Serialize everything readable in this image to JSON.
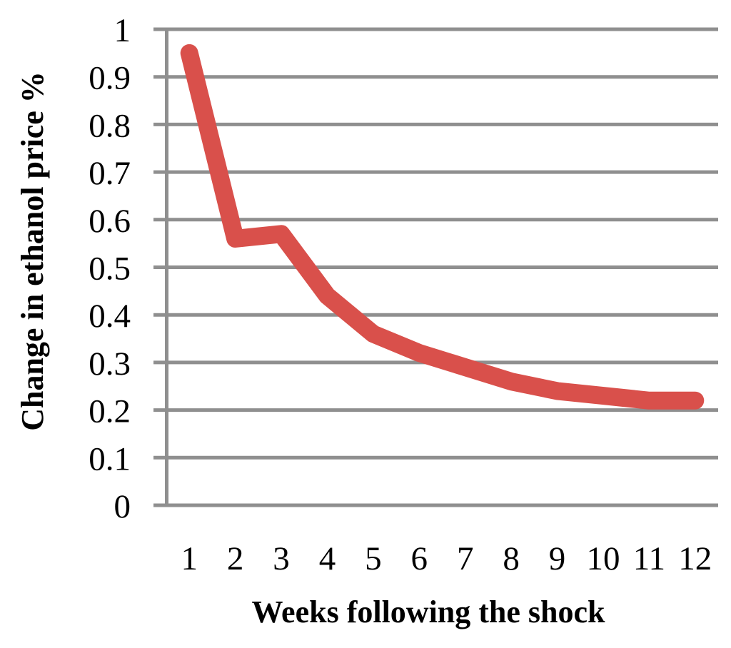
{
  "chart_data": {
    "type": "line",
    "title": "",
    "xlabel": "Weeks following the shock",
    "ylabel": "Change in ethanol price %",
    "x": [
      1,
      2,
      3,
      4,
      5,
      6,
      7,
      8,
      9,
      10,
      11,
      12
    ],
    "x_labels": [
      "1",
      "2",
      "3",
      "4",
      "5",
      "6",
      "7",
      "8",
      "9",
      "10",
      "11",
      "12"
    ],
    "series": [
      {
        "name": "Change in ethanol price %",
        "values": [
          0.95,
          0.56,
          0.57,
          0.44,
          0.36,
          0.32,
          0.29,
          0.26,
          0.24,
          0.23,
          0.22,
          0.22
        ]
      }
    ],
    "xlim": [
      0.5,
      12.5
    ],
    "ylim": [
      0,
      1
    ],
    "yticks": [
      0,
      0.1,
      0.2,
      0.3,
      0.4,
      0.5,
      0.6,
      0.7,
      0.8,
      0.9,
      1
    ],
    "ytick_labels": [
      "0",
      "0.1",
      "0.2",
      "0.3",
      "0.4",
      "0.5",
      "0.6",
      "0.7",
      "0.8",
      "0.9",
      "1"
    ],
    "grid": "horizontal",
    "legend": "none",
    "colors": {
      "line": "#d9504b",
      "grid": "#8f8f8f",
      "axis": "#8f8f8f",
      "text": "#000000",
      "background": "#ffffff"
    }
  }
}
